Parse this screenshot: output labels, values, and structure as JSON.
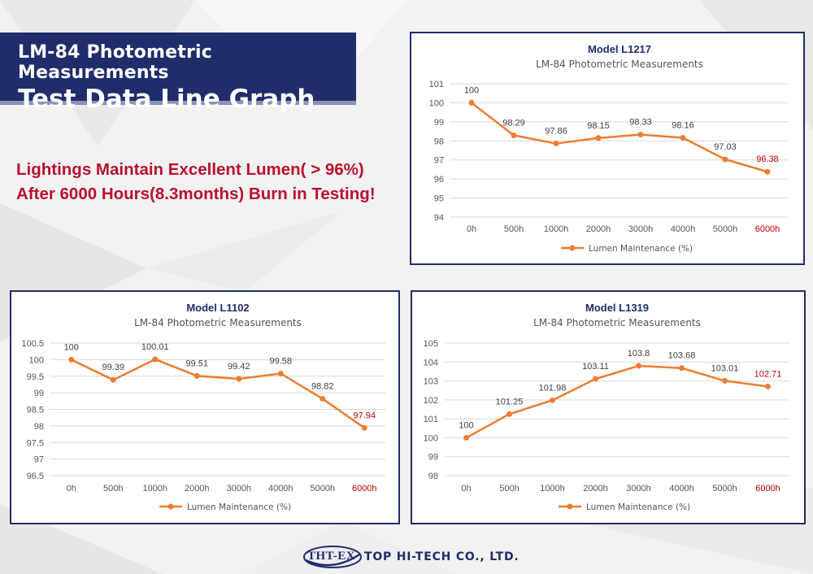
{
  "header": {
    "line1": "LM-84 Photometric Measurements",
    "line2": "Test Data Line Graph"
  },
  "headline": {
    "line1": "Lightings Maintain Excellent Lumen( > 96%)",
    "line2": "After 6000 Hours(8.3months) Burn in Testing!"
  },
  "footer": {
    "logo_text": "THT-EX",
    "company": "TOP HI-TECH CO., LTD."
  },
  "colors": {
    "navy": "#1f2d6b",
    "line": "#ed7d31",
    "highlight": "#c00000",
    "headline": "#b8102e"
  },
  "chart_data": [
    {
      "type": "line",
      "title": "Model L1217",
      "subtitle": "LM-84  Photometric Measurements",
      "categories": [
        "0h",
        "500h",
        "1000h",
        "2000h",
        "3000h",
        "4000h",
        "5000h",
        "6000h"
      ],
      "series": [
        {
          "name": "Lumen Maintenance (%)",
          "values": [
            100,
            98.29,
            97.86,
            98.15,
            98.33,
            98.16,
            97.03,
            96.38
          ]
        }
      ],
      "data_labels": [
        "100",
        "98.29",
        "97.86",
        "98.15",
        "98.33",
        "98.16",
        "97.03",
        "96.38"
      ],
      "ylim": [
        94,
        101
      ],
      "yticks": [
        "94",
        "95",
        "96",
        "97",
        "98",
        "99",
        "100",
        "101"
      ],
      "grid": true,
      "legend": "bottom"
    },
    {
      "type": "line",
      "title": "Model L1102",
      "subtitle": "LM-84  Photometric Measurements",
      "categories": [
        "0h",
        "500h",
        "1000h",
        "2000h",
        "3000h",
        "4000h",
        "5000h",
        "6000h"
      ],
      "series": [
        {
          "name": "Lumen Maintenance (%)",
          "values": [
            100,
            99.39,
            100.01,
            99.51,
            99.42,
            99.58,
            98.82,
            97.94
          ]
        }
      ],
      "data_labels": [
        "100",
        "99.39",
        "100.01",
        "99.51",
        "99.42",
        "99.58",
        "98.82",
        "97.94"
      ],
      "ylim": [
        96.5,
        100.5
      ],
      "yticks": [
        "96.5",
        "97",
        "97.5",
        "98",
        "98.5",
        "99",
        "99.5",
        "100",
        "100.5"
      ],
      "grid": true,
      "legend": "bottom"
    },
    {
      "type": "line",
      "title": "Model L1319",
      "subtitle": "LM-84  Photometric Measurements",
      "categories": [
        "0h",
        "500h",
        "1000h",
        "2000h",
        "3000h",
        "4000h",
        "5000h",
        "6000h"
      ],
      "series": [
        {
          "name": "Lumen Maintenance (%)",
          "values": [
            100,
            101.25,
            101.98,
            103.11,
            103.8,
            103.68,
            103.01,
            102.71
          ]
        }
      ],
      "data_labels": [
        "100",
        "101.25",
        "101.98",
        "103.11",
        "103.8",
        "103.68",
        "103.01",
        "102.71"
      ],
      "ylim": [
        98,
        105
      ],
      "yticks": [
        "98",
        "99",
        "100",
        "101",
        "102",
        "103",
        "104",
        "105"
      ],
      "grid": true,
      "legend": "bottom"
    }
  ]
}
